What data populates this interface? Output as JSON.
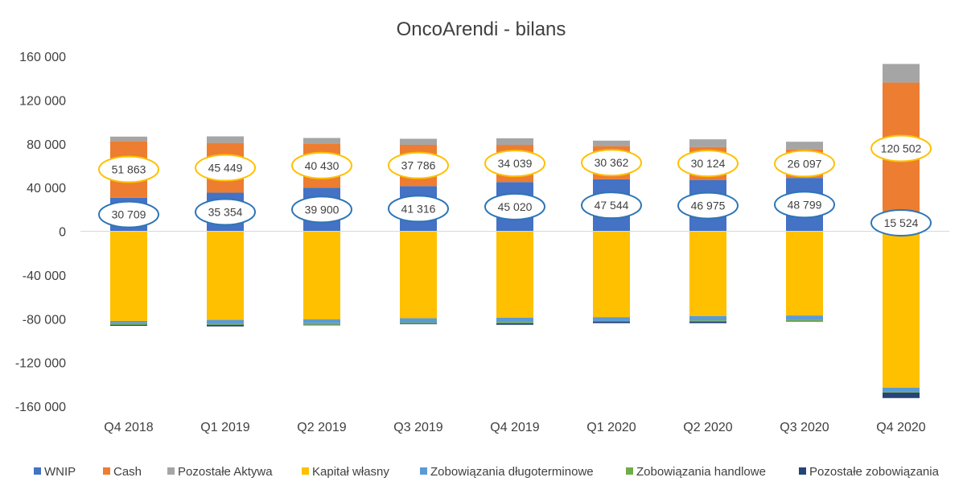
{
  "chart_data": {
    "type": "bar",
    "stacked": true,
    "title": "OncoArendi - bilans",
    "xlabel": "",
    "ylabel": "",
    "ylim": [
      -160000,
      160000
    ],
    "yticks": [
      160000,
      120000,
      80000,
      40000,
      0,
      -40000,
      -80000,
      -120000,
      -160000
    ],
    "ytick_labels": [
      "160 000",
      "120 000",
      "80 000",
      "40 000",
      "0",
      "-40 000",
      "-80 000",
      "-120 000",
      "-160 000"
    ],
    "grid": false,
    "legend_position": "bottom",
    "categories": [
      "Q4 2018",
      "Q1 2019",
      "Q2 2019",
      "Q3 2019",
      "Q4 2019",
      "Q1 2020",
      "Q2 2020",
      "Q3 2020",
      "Q4 2020"
    ],
    "series": [
      {
        "name": "WNIP",
        "color": "#4472C4",
        "values": [
          30709,
          35354,
          39900,
          41316,
          45020,
          47544,
          46975,
          48799,
          15524
        ]
      },
      {
        "name": "Cash",
        "color": "#ED7D31",
        "values": [
          51863,
          45449,
          40430,
          37786,
          34039,
          30362,
          30124,
          26097,
          120502
        ]
      },
      {
        "name": "Pozostałe Aktywa",
        "color": "#A5A5A5",
        "values": [
          4000,
          6000,
          5000,
          5500,
          6000,
          5000,
          7000,
          7000,
          17000
        ]
      },
      {
        "name": "Kapitał własny",
        "color": "#FFC000",
        "values": [
          -82000,
          -81000,
          -80500,
          -79500,
          -79000,
          -78500,
          -77500,
          -77000,
          -143000
        ]
      },
      {
        "name": "Zobowiązania długoterminowe",
        "color": "#5B9BD5",
        "values": [
          -2000,
          -3500,
          -3500,
          -4000,
          -4000,
          -3500,
          -4000,
          -4000,
          -4000
        ]
      },
      {
        "name": "Zobowiązania handlowe",
        "color": "#70AD47",
        "values": [
          -1500,
          -1000,
          -1500,
          -1000,
          -1000,
          -500,
          -1000,
          -1000,
          -500
        ]
      },
      {
        "name": "Pozostałe zobowiązania",
        "color": "#264478",
        "values": [
          -1000,
          -1500,
          -500,
          -500,
          -1500,
          -1500,
          -1500,
          -500,
          -5000
        ]
      }
    ],
    "data_labels": {
      "WNIP": [
        "30 709",
        "35 354",
        "39 900",
        "41 316",
        "45 020",
        "47 544",
        "46 975",
        "48 799",
        "15 524"
      ],
      "Cash": [
        "51 863",
        "45 449",
        "40 430",
        "37 786",
        "34 039",
        "30 362",
        "30 124",
        "26 097",
        "120 502"
      ]
    },
    "label_outline_colors": {
      "WNIP": "#2E75B6",
      "Cash": "#FFC000"
    }
  }
}
